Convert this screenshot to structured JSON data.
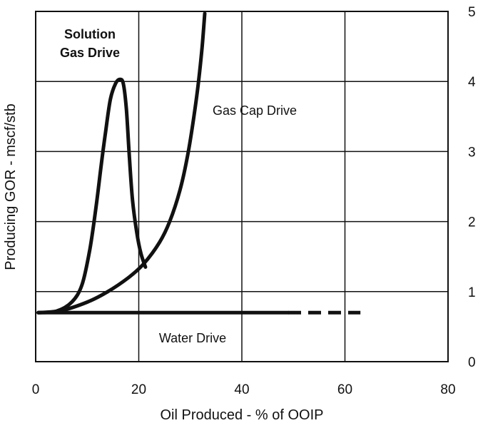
{
  "chart_data": {
    "type": "line",
    "title": "",
    "xlabel": "Oil Produced - % of OOIP",
    "ylabel": "Producing GOR - mscf/stb",
    "xlim": [
      0,
      80
    ],
    "ylim": [
      0,
      5
    ],
    "x_ticks": [
      "0",
      "20",
      "40",
      "60",
      "80"
    ],
    "y_ticks": [
      "0",
      "1",
      "2",
      "3",
      "4",
      "5"
    ],
    "y_axis_side": "right",
    "grid": true,
    "series": [
      {
        "name": "Solution Gas Drive",
        "label_lines": [
          "Solution",
          "Gas Drive"
        ],
        "style": "solid",
        "points": [
          [
            0.5,
            0.7
          ],
          [
            4,
            0.72
          ],
          [
            7,
            0.85
          ],
          [
            9,
            1.1
          ],
          [
            10.5,
            1.6
          ],
          [
            11.7,
            2.2
          ],
          [
            12.7,
            2.8
          ],
          [
            13.6,
            3.3
          ],
          [
            14.5,
            3.75
          ],
          [
            15.5,
            3.97
          ],
          [
            16.3,
            4.03
          ],
          [
            17,
            3.97
          ],
          [
            17.6,
            3.6
          ],
          [
            18.2,
            2.9
          ],
          [
            18.8,
            2.3
          ],
          [
            19.6,
            1.85
          ],
          [
            20.4,
            1.55
          ],
          [
            21.3,
            1.35
          ]
        ]
      },
      {
        "name": "Gas Cap Drive",
        "label_lines": [
          "Gas Cap Drive"
        ],
        "style": "solid",
        "points": [
          [
            0.5,
            0.7
          ],
          [
            5,
            0.73
          ],
          [
            10,
            0.85
          ],
          [
            14,
            1.0
          ],
          [
            18,
            1.2
          ],
          [
            21,
            1.4
          ],
          [
            24,
            1.7
          ],
          [
            26,
            2.0
          ],
          [
            28,
            2.45
          ],
          [
            29.5,
            2.95
          ],
          [
            30.7,
            3.5
          ],
          [
            31.6,
            4.0
          ],
          [
            32.3,
            4.5
          ],
          [
            32.8,
            4.97
          ]
        ]
      },
      {
        "name": "Water Drive",
        "label_lines": [
          "Water Drive"
        ],
        "style": "solid",
        "points": [
          [
            0.5,
            0.7
          ],
          [
            49,
            0.7
          ]
        ]
      },
      {
        "name": "Water Drive (projected)",
        "label_lines": [],
        "style": "dashed",
        "points": [
          [
            49,
            0.7
          ],
          [
            63,
            0.7
          ]
        ]
      }
    ]
  }
}
